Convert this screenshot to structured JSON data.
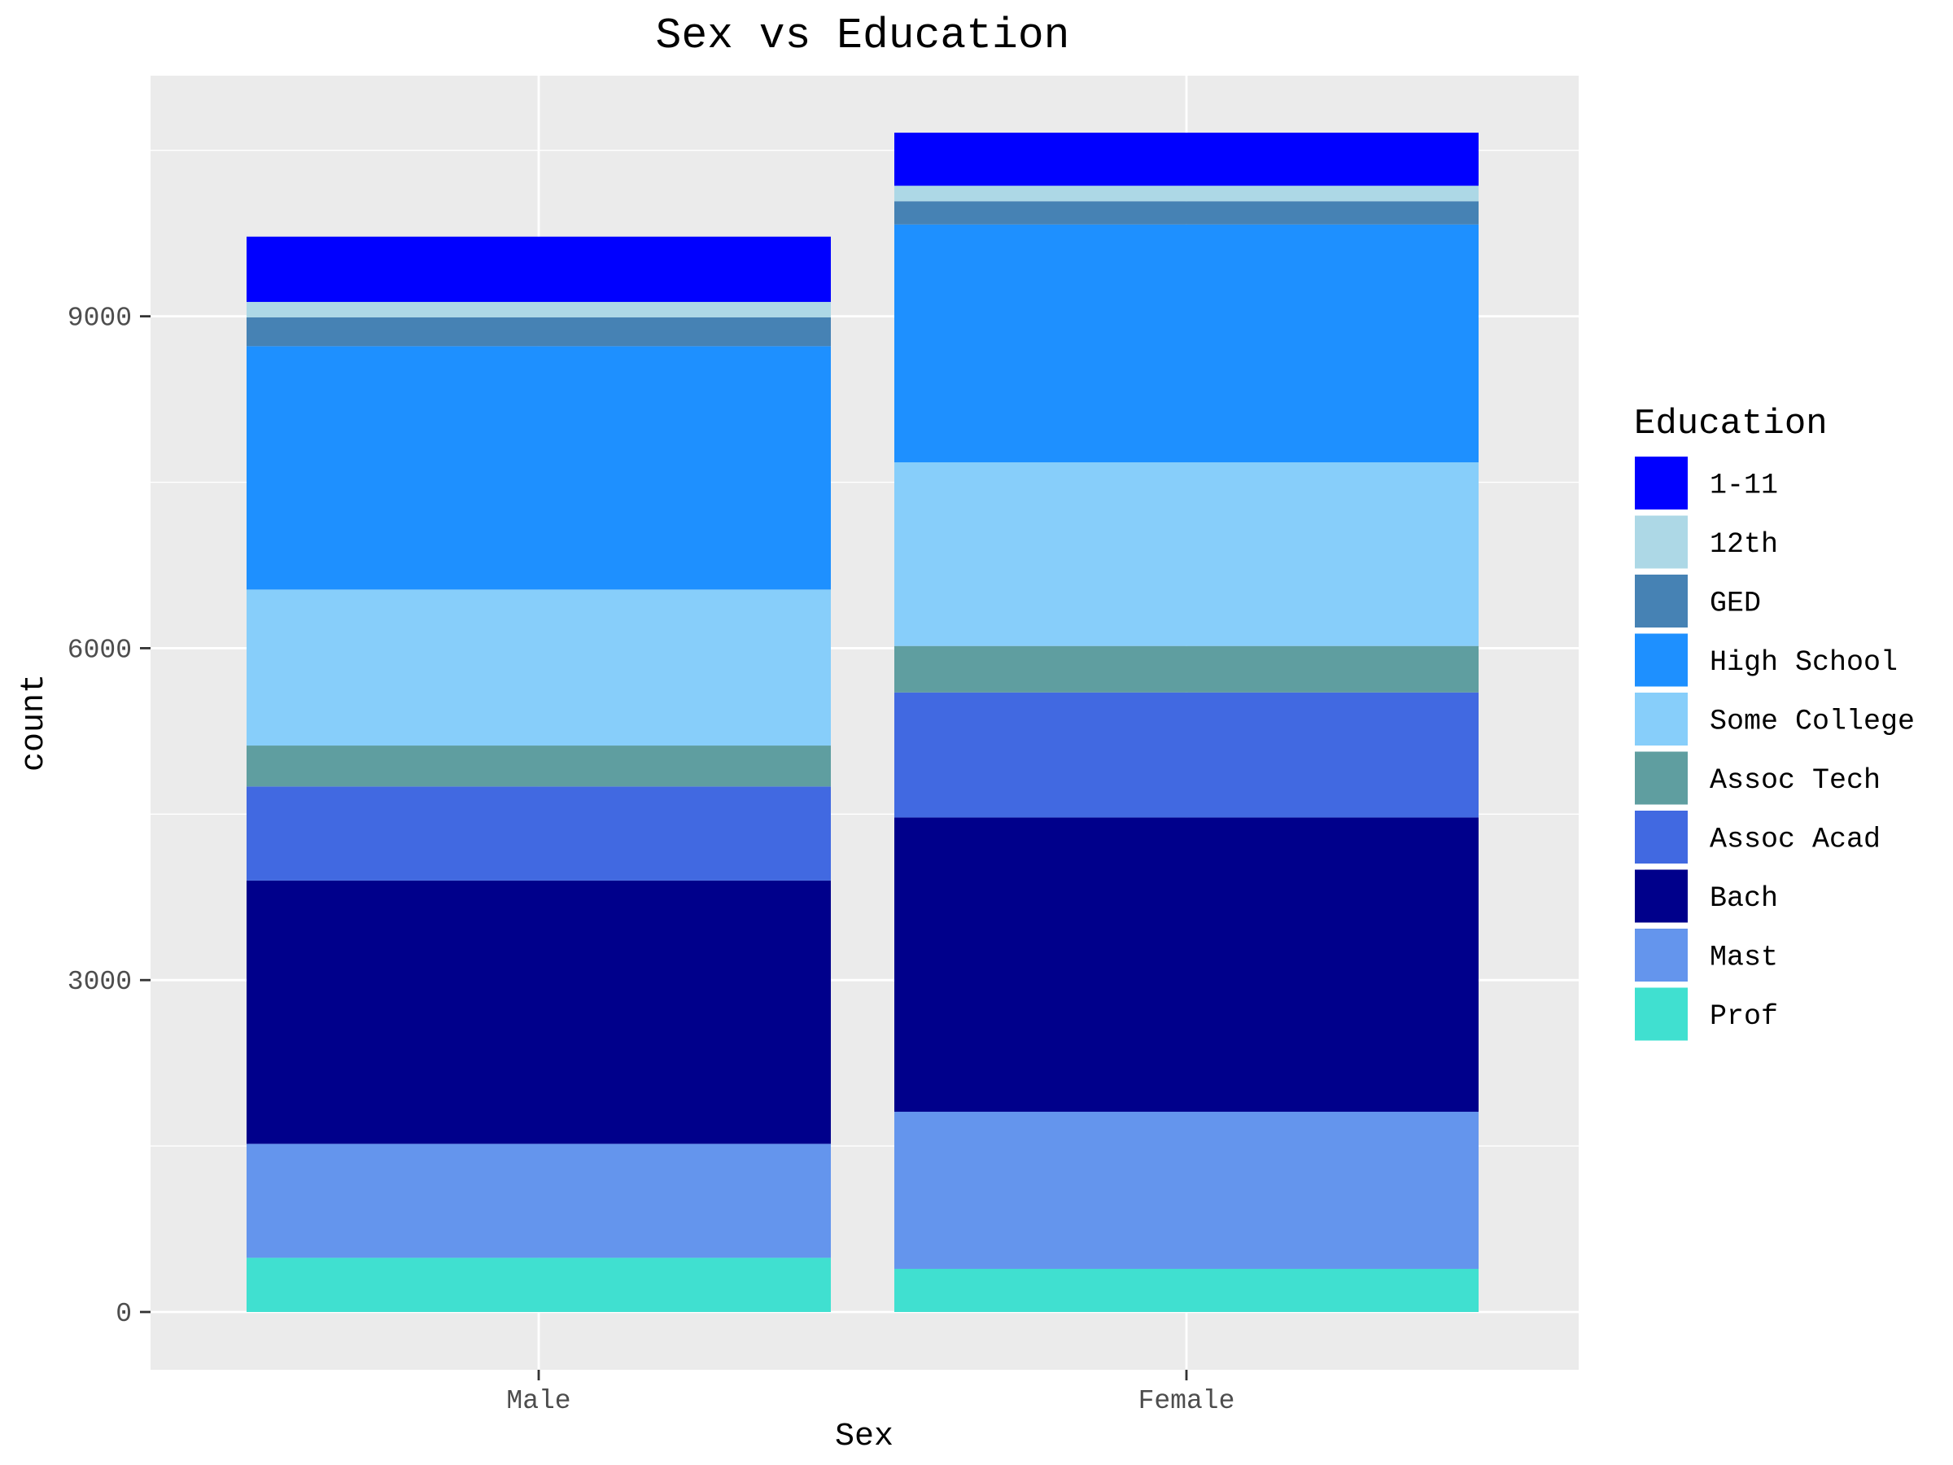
{
  "chart_data": {
    "type": "bar",
    "stacked": true,
    "title": "Sex vs Education",
    "xlabel": "Sex",
    "ylabel": "count",
    "categories": [
      "Male",
      "Female"
    ],
    "ylim": [
      0,
      10600
    ],
    "yticks": [
      0,
      3000,
      6000,
      9000
    ],
    "ytick_labels": [
      "0",
      "3000",
      "6000",
      "9000"
    ],
    "grid": true,
    "legend": {
      "title": "Education",
      "position": "right"
    },
    "series": [
      {
        "name": "1-11",
        "color": "#0000ff",
        "values": [
          590,
          480
        ]
      },
      {
        "name": "12th",
        "color": "#add8e6",
        "values": [
          140,
          140
        ]
      },
      {
        "name": "GED",
        "color": "#4682b4",
        "values": [
          260,
          210
        ]
      },
      {
        "name": "High School",
        "color": "#1e90ff",
        "values": [
          2200,
          2150
        ]
      },
      {
        "name": "Some College",
        "color": "#87cefa",
        "values": [
          1410,
          1660
        ]
      },
      {
        "name": "Assoc Tech",
        "color": "#5f9ea0",
        "values": [
          370,
          420
        ]
      },
      {
        "name": "Assoc Acad",
        "color": "#4169e1",
        "values": [
          850,
          1130
        ]
      },
      {
        "name": "Bach",
        "color": "#00008b",
        "values": [
          2380,
          2660
        ]
      },
      {
        "name": "Mast",
        "color": "#6495ed",
        "values": [
          1030,
          1420
        ]
      },
      {
        "name": "Prof",
        "color": "#40e0d0",
        "values": [
          490,
          390
        ]
      }
    ]
  }
}
